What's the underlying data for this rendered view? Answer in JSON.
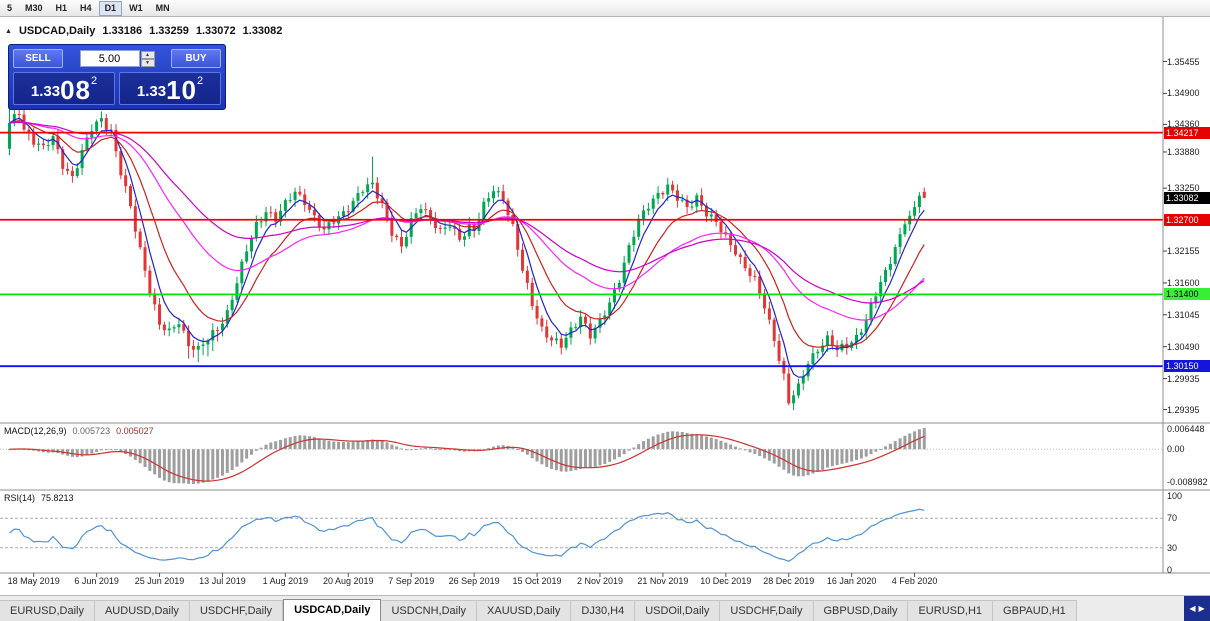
{
  "toolbar": {
    "timeframes": [
      "5",
      "M30",
      "H1",
      "H4",
      "D1",
      "W1",
      "MN"
    ],
    "active": "D1"
  },
  "header": {
    "icon": "▲",
    "symbol": "USDCAD,Daily",
    "open": "1.33186",
    "high": "1.33259",
    "low": "1.33072",
    "close": "1.33082"
  },
  "trade_panel": {
    "panel_color": "#2443c8",
    "sell_label": "SELL",
    "buy_label": "BUY",
    "volume": "5.00",
    "spin_up_icon": "▲",
    "spin_down_icon": "▼",
    "sell_price": {
      "prefix": "1.33",
      "big": "08",
      "sup": "2"
    },
    "buy_price": {
      "prefix": "1.33",
      "big": "10",
      "sup": "2"
    }
  },
  "price_axis": {
    "ticks": [
      {
        "text": "1.35455",
        "price": 1.35455
      },
      {
        "text": "1.34900",
        "price": 1.349
      },
      {
        "text": "1.34360",
        "price": 1.3436
      },
      {
        "text": "1.33880",
        "price": 1.3388
      },
      {
        "text": "1.33250",
        "price": 1.3325
      },
      {
        "text": "1.32155",
        "price": 1.32155
      },
      {
        "text": "1.31600",
        "price": 1.316
      },
      {
        "text": "1.31045",
        "price": 1.31045
      },
      {
        "text": "1.30490",
        "price": 1.3049
      },
      {
        "text": "1.29935",
        "price": 1.29935
      },
      {
        "text": "1.29395",
        "price": 1.29395
      }
    ],
    "badges": [
      {
        "text": "1.34217",
        "price": 1.34217,
        "bg": "#e60000",
        "fg": "#ffffff"
      },
      {
        "text": "1.33082",
        "price": 1.33082,
        "bg": "#000000",
        "fg": "#ffffff"
      },
      {
        "text": "1.32700",
        "price": 1.327,
        "bg": "#e60000",
        "fg": "#ffffff"
      },
      {
        "text": "1.31400",
        "price": 1.314,
        "bg": "#36f036",
        "fg": "#000000"
      },
      {
        "text": "1.30150",
        "price": 1.3015,
        "bg": "#1414dc",
        "fg": "#ffffff"
      }
    ]
  },
  "indicators": {
    "macd": {
      "label": "MACD(12,26,9)",
      "value_main": "0.005723",
      "value_signal": "0.005027",
      "axis_top": "0.006448",
      "axis_zero": "0.00",
      "axis_bottom": "-0.008982"
    },
    "rsi": {
      "label": "RSI(14)",
      "value": "75.8213",
      "axis_labels": [
        "100",
        "70",
        "30",
        "0"
      ]
    }
  },
  "chart_data": {
    "type": "candlestick",
    "symbol": "USDCAD",
    "timeframe": "Daily",
    "current_ohlc": {
      "open": 1.33186,
      "high": 1.33259,
      "low": 1.33072,
      "close": 1.33082
    },
    "price_range_top": 1.3583,
    "price_range_bottom": 1.293,
    "candle_count": 190,
    "candle_colors": {
      "up": "#00a651",
      "down": "#e03636"
    },
    "horizontal_lines": [
      {
        "price": 1.34217,
        "color": "#f20000"
      },
      {
        "price": 1.327,
        "color": "#f20000"
      },
      {
        "price": 1.314,
        "color": "#00e600"
      },
      {
        "price": 1.3015,
        "color": "#0f0ff2"
      }
    ],
    "moving_averages": [
      {
        "period": 5,
        "color": "#2323cc"
      },
      {
        "period": 13,
        "color": "#cc2222"
      },
      {
        "period": 34,
        "color": "#ff22ff"
      },
      {
        "period": 55,
        "color": "#cc00cc"
      }
    ],
    "macd": {
      "fast": 12,
      "slow": 26,
      "signal": 9,
      "histogram_color": "#9e9e9e",
      "signal_color": "#cc3333",
      "current_macd": 0.005723,
      "current_signal": 0.005027,
      "axis_max": 0.006448,
      "axis_min": -0.008982
    },
    "rsi": {
      "period": 14,
      "current": 75.8213,
      "color": "#4f93d6",
      "levels": [
        70,
        30
      ]
    },
    "date_labels": [
      "18 May 2019",
      "6 Jun 2019",
      "25 Jun 2019",
      "13 Jul 2019",
      "1 Aug 2019",
      "20 Aug 2019",
      "7 Sep 2019",
      "26 Sep 2019",
      "15 Oct 2019",
      "2 Nov 2019",
      "21 Nov 2019",
      "10 Dec 2019",
      "28 Dec 2019",
      "16 Jan 2020",
      "4 Feb 2020"
    ],
    "close_anchors": [
      [
        0,
        1.3435
      ],
      [
        2,
        1.346
      ],
      [
        3,
        1.343
      ],
      [
        5,
        1.3408
      ],
      [
        7,
        1.3392
      ],
      [
        9,
        1.3412
      ],
      [
        11,
        1.3368
      ],
      [
        13,
        1.3345
      ],
      [
        15,
        1.3385
      ],
      [
        17,
        1.3428
      ],
      [
        19,
        1.3448
      ],
      [
        21,
        1.3425
      ],
      [
        23,
        1.335
      ],
      [
        25,
        1.329
      ],
      [
        27,
        1.322
      ],
      [
        29,
        1.315
      ],
      [
        31,
        1.3085
      ],
      [
        33,
        1.3072
      ],
      [
        35,
        1.3095
      ],
      [
        37,
        1.3055
      ],
      [
        39,
        1.3042
      ],
      [
        41,
        1.306
      ],
      [
        43,
        1.3082
      ],
      [
        45,
        1.311
      ],
      [
        47,
        1.316
      ],
      [
        49,
        1.3215
      ],
      [
        51,
        1.3262
      ],
      [
        53,
        1.3288
      ],
      [
        55,
        1.327
      ],
      [
        57,
        1.3295
      ],
      [
        59,
        1.332
      ],
      [
        61,
        1.3305
      ],
      [
        63,
        1.3272
      ],
      [
        65,
        1.3248
      ],
      [
        67,
        1.327
      ],
      [
        69,
        1.3285
      ],
      [
        71,
        1.33
      ],
      [
        73,
        1.332
      ],
      [
        75,
        1.3332
      ],
      [
        77,
        1.33
      ],
      [
        79,
        1.3248
      ],
      [
        81,
        1.3218
      ],
      [
        83,
        1.3268
      ],
      [
        85,
        1.3298
      ],
      [
        87,
        1.3272
      ],
      [
        89,
        1.3245
      ],
      [
        91,
        1.3262
      ],
      [
        93,
        1.324
      ],
      [
        95,
        1.3258
      ],
      [
        96,
        1.325
      ],
      [
        98,
        1.3292
      ],
      [
        100,
        1.3325
      ],
      [
        102,
        1.331
      ],
      [
        104,
        1.3255
      ],
      [
        106,
        1.318
      ],
      [
        108,
        1.3125
      ],
      [
        110,
        1.3082
      ],
      [
        112,
        1.306
      ],
      [
        114,
        1.3048
      ],
      [
        116,
        1.3078
      ],
      [
        118,
        1.3105
      ],
      [
        120,
        1.3068
      ],
      [
        122,
        1.3088
      ],
      [
        124,
        1.3125
      ],
      [
        126,
        1.317
      ],
      [
        128,
        1.3222
      ],
      [
        130,
        1.3265
      ],
      [
        132,
        1.3295
      ],
      [
        134,
        1.3318
      ],
      [
        136,
        1.3328
      ],
      [
        138,
        1.3305
      ],
      [
        140,
        1.329
      ],
      [
        142,
        1.3312
      ],
      [
        144,
        1.3282
      ],
      [
        146,
        1.3262
      ],
      [
        148,
        1.3238
      ],
      [
        150,
        1.3218
      ],
      [
        152,
        1.3188
      ],
      [
        154,
        1.3162
      ],
      [
        156,
        1.3118
      ],
      [
        158,
        1.3065
      ],
      [
        160,
        1.2998
      ],
      [
        161,
        1.2952
      ],
      [
        163,
        1.2975
      ],
      [
        165,
        1.3022
      ],
      [
        167,
        1.3048
      ],
      [
        169,
        1.3062
      ],
      [
        171,
        1.304
      ],
      [
        173,
        1.3052
      ],
      [
        175,
        1.3068
      ],
      [
        177,
        1.3095
      ],
      [
        179,
        1.3138
      ],
      [
        181,
        1.3178
      ],
      [
        183,
        1.3225
      ],
      [
        185,
        1.3262
      ],
      [
        187,
        1.3292
      ],
      [
        188,
        1.3312
      ],
      [
        189,
        1.33082
      ]
    ]
  },
  "tabs": {
    "scroll_left_icon": "◀",
    "scroll_right_icon": "▶",
    "items": [
      {
        "label": "EURUSD,Daily",
        "active": false
      },
      {
        "label": "AUDUSD,Daily",
        "active": false
      },
      {
        "label": "USDCHF,Daily",
        "active": false
      },
      {
        "label": "USDCAD,Daily",
        "active": true
      },
      {
        "label": "USDCNH,Daily",
        "active": false
      },
      {
        "label": "XAUUSD,Daily",
        "active": false
      },
      {
        "label": "DJ30,H4",
        "active": false
      },
      {
        "label": "USDOil,Daily",
        "active": false
      },
      {
        "label": "USDCHF,Daily",
        "active": false
      },
      {
        "label": "GBPUSD,Daily",
        "active": false
      },
      {
        "label": "EURUSD,H1",
        "active": false
      },
      {
        "label": "GBPAUD,H1",
        "active": false
      }
    ]
  }
}
